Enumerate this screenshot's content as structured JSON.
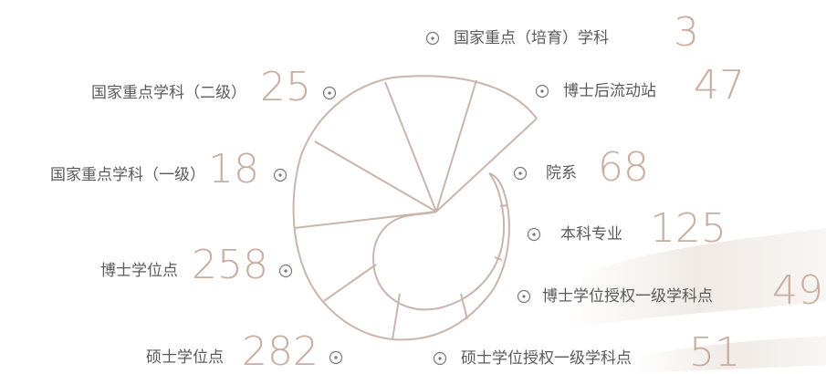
{
  "items": [
    {
      "label": "国家重点（培育）学科",
      "value": 3
    },
    {
      "label": "博士后流动站",
      "value": 47
    },
    {
      "label": "院系",
      "value": 68
    },
    {
      "label": "本科专业",
      "value": 125
    },
    {
      "label": "博士学位授权一级学科点",
      "value": 49
    },
    {
      "label": "硕士学位授权一级学科点",
      "value": 51
    },
    {
      "label": "硕士学位点",
      "value": 282
    },
    {
      "label": "博士学位点",
      "value": 258
    },
    {
      "label": "国家重点学科（一级）",
      "value": 18
    },
    {
      "label": "国家重点学科（二级）",
      "value": 25
    }
  ]
}
